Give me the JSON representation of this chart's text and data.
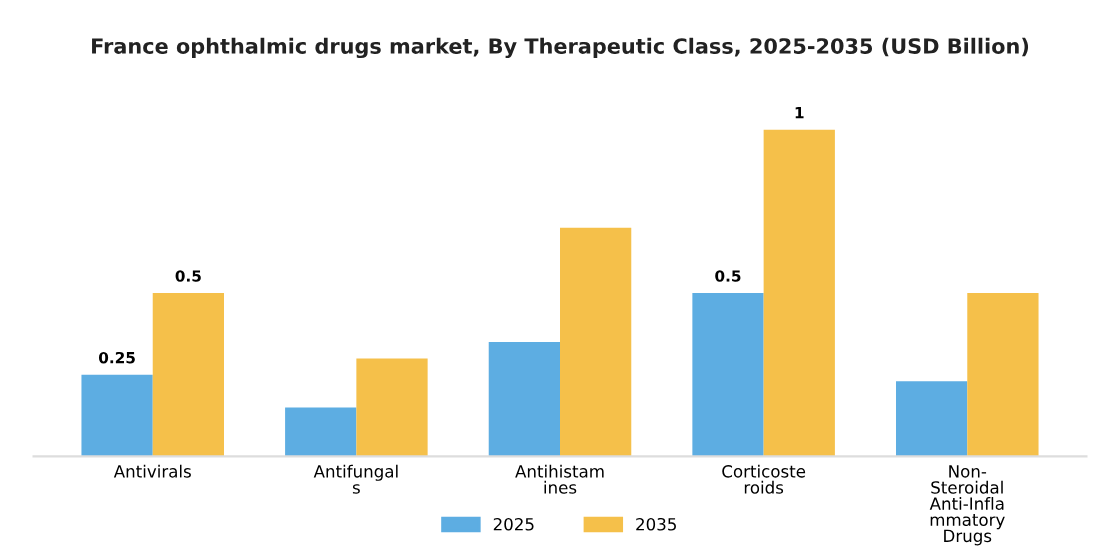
{
  "chart_data": {
    "type": "bar",
    "title": "France ophthalmic drugs market, By Therapeutic Class, 2025-2035 (USD Billion)",
    "categories": [
      "Antivirals",
      "Antifungal\ns",
      "Antihistam\nines",
      "Corticoste\nroids",
      "Non-\nSteroidal\nAnti-Infla\nmmatory\nDrugs"
    ],
    "series": [
      {
        "name": "2025",
        "color": "#5dade2",
        "values": [
          0.25,
          0.15,
          0.35,
          0.5,
          0.23
        ],
        "value_labels": [
          "0.25",
          null,
          null,
          "0.5",
          null
        ]
      },
      {
        "name": "2035",
        "color": "#f5c04a",
        "values": [
          0.5,
          0.3,
          0.7,
          1,
          0.5
        ],
        "value_labels": [
          "0.5",
          null,
          null,
          "1",
          null
        ]
      }
    ],
    "tick_labels": "x",
    "legend": "bottom",
    "grid": false
  }
}
